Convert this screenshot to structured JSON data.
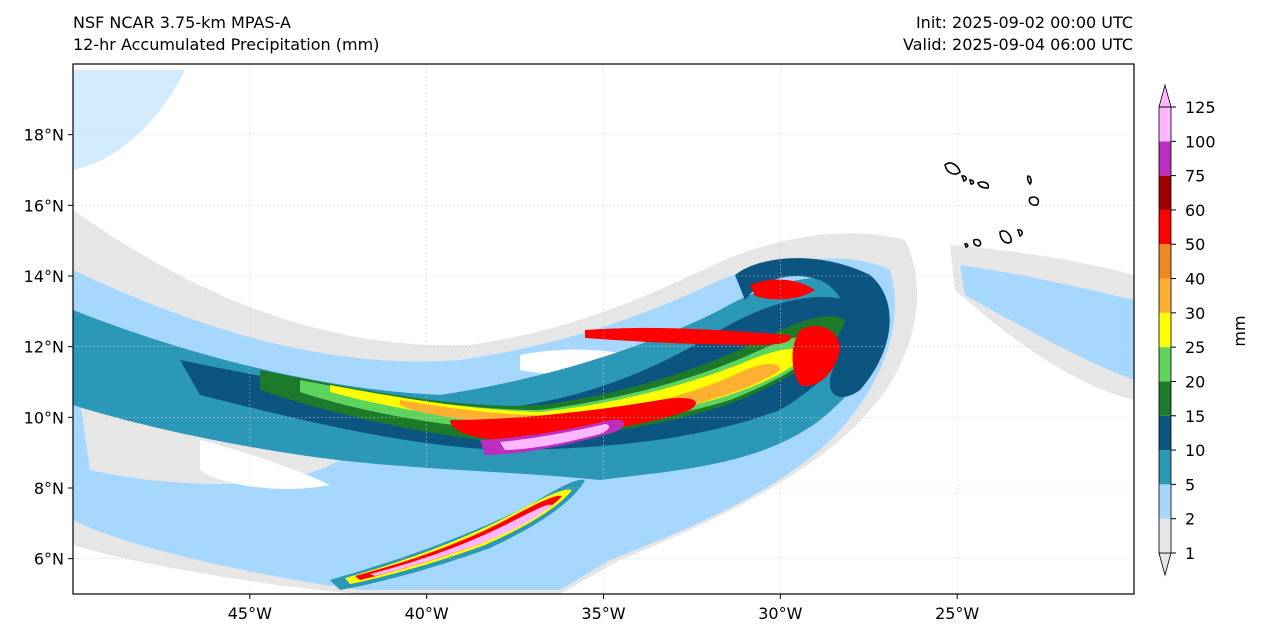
{
  "header": {
    "model": "NSF NCAR 3.75-km MPAS-A",
    "field": "12-hr Accumulated Precipitation (mm)",
    "init": "Init: 2025-09-02 00:00 UTC",
    "valid": "Valid: 2025-09-04 06:00 UTC"
  },
  "map": {
    "lon_range": [
      -50,
      -20
    ],
    "lat_range": [
      5,
      20
    ],
    "lon_ticks": [
      "45°W",
      "40°W",
      "35°W",
      "30°W",
      "25°W"
    ],
    "lon_tick_values": [
      -45,
      -40,
      -35,
      -30,
      -25
    ],
    "lat_ticks": [
      "18°N",
      "16°N",
      "14°N",
      "12°N",
      "10°N",
      "8°N",
      "6°N"
    ],
    "lat_tick_values": [
      18,
      16,
      14,
      12,
      10,
      8,
      6
    ],
    "grid": true
  },
  "colorbar": {
    "label": "mm",
    "levels": [
      "1",
      "2",
      "5",
      "10",
      "15",
      "20",
      "25",
      "30",
      "40",
      "50",
      "60",
      "75",
      "100",
      "125"
    ],
    "colors": [
      "#e6e6e6",
      "#a6d8ff",
      "#2a98b6",
      "#0b5580",
      "#1c7a2a",
      "#5ed45e",
      "#ffff00",
      "#ffb030",
      "#ef8a22",
      "#ff0000",
      "#a00000",
      "#bb2ec0",
      "#ffb8ff"
    ]
  }
}
